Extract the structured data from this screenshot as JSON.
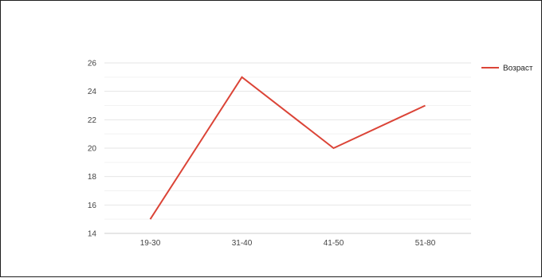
{
  "chart_data": {
    "type": "line",
    "categories": [
      "19-30",
      "31-40",
      "41-50",
      "51-80"
    ],
    "series": [
      {
        "name": "Возраст",
        "values": [
          15,
          25,
          20,
          23
        ],
        "color": "#db4437"
      }
    ],
    "y_ticks": [
      "14",
      "16",
      "18",
      "20",
      "22",
      "24",
      "26"
    ],
    "ylim": [
      14,
      26
    ],
    "grid": true,
    "legend_position": "right",
    "gridline_color": "#e6e6e6",
    "axis_line_color": "#cccccc"
  }
}
